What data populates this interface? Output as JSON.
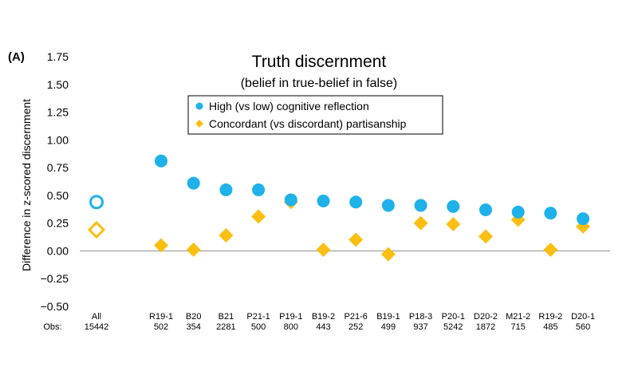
{
  "panel_label": "(A)",
  "obs_label": "Obs:",
  "colors": {
    "high": "#1fb1ea",
    "concordant": "#fbbf12",
    "axis": "#909090"
  },
  "chart_data": {
    "type": "scatter",
    "title": "Truth discernment",
    "subtitle": "(belief in true-belief in false)",
    "xlabel": "",
    "ylabel": "Difference in z-scored discernment",
    "ylim": [
      -0.5,
      1.75
    ],
    "yticks": [
      "1.75",
      "1.50",
      "1.25",
      "1.00",
      "0.75",
      "0.50",
      "0.25",
      "0.00",
      "−0.25",
      "−0.50"
    ],
    "ytick_values": [
      1.75,
      1.5,
      1.25,
      1.0,
      0.75,
      0.5,
      0.25,
      0.0,
      -0.25,
      -0.5
    ],
    "grid": false,
    "legend_position": "top-center",
    "categories": [
      "All",
      "R19-1",
      "B20",
      "B21",
      "P21-1",
      "P19-1",
      "B19-2",
      "P21-6",
      "B19-1",
      "P18-3",
      "P20-1",
      "D20-2",
      "M21-2",
      "R19-2",
      "D20-1"
    ],
    "obs": [
      "15442",
      "502",
      "354",
      "2281",
      "500",
      "800",
      "443",
      "252",
      "499",
      "937",
      "5242",
      "1872",
      "715",
      "485",
      "560"
    ],
    "series": [
      {
        "name": "High (vs low) cognitive reflection",
        "marker": "circle",
        "values": [
          0.44,
          0.81,
          0.61,
          0.55,
          0.55,
          0.46,
          0.45,
          0.44,
          0.41,
          0.41,
          0.4,
          0.37,
          0.35,
          0.34,
          0.29
        ]
      },
      {
        "name": "Concordant (vs discordant) partisanship",
        "marker": "diamond",
        "values": [
          0.19,
          0.05,
          0.01,
          0.14,
          0.31,
          0.44,
          0.01,
          0.1,
          -0.03,
          0.25,
          0.24,
          0.13,
          0.28,
          0.01,
          0.22
        ]
      }
    ]
  }
}
